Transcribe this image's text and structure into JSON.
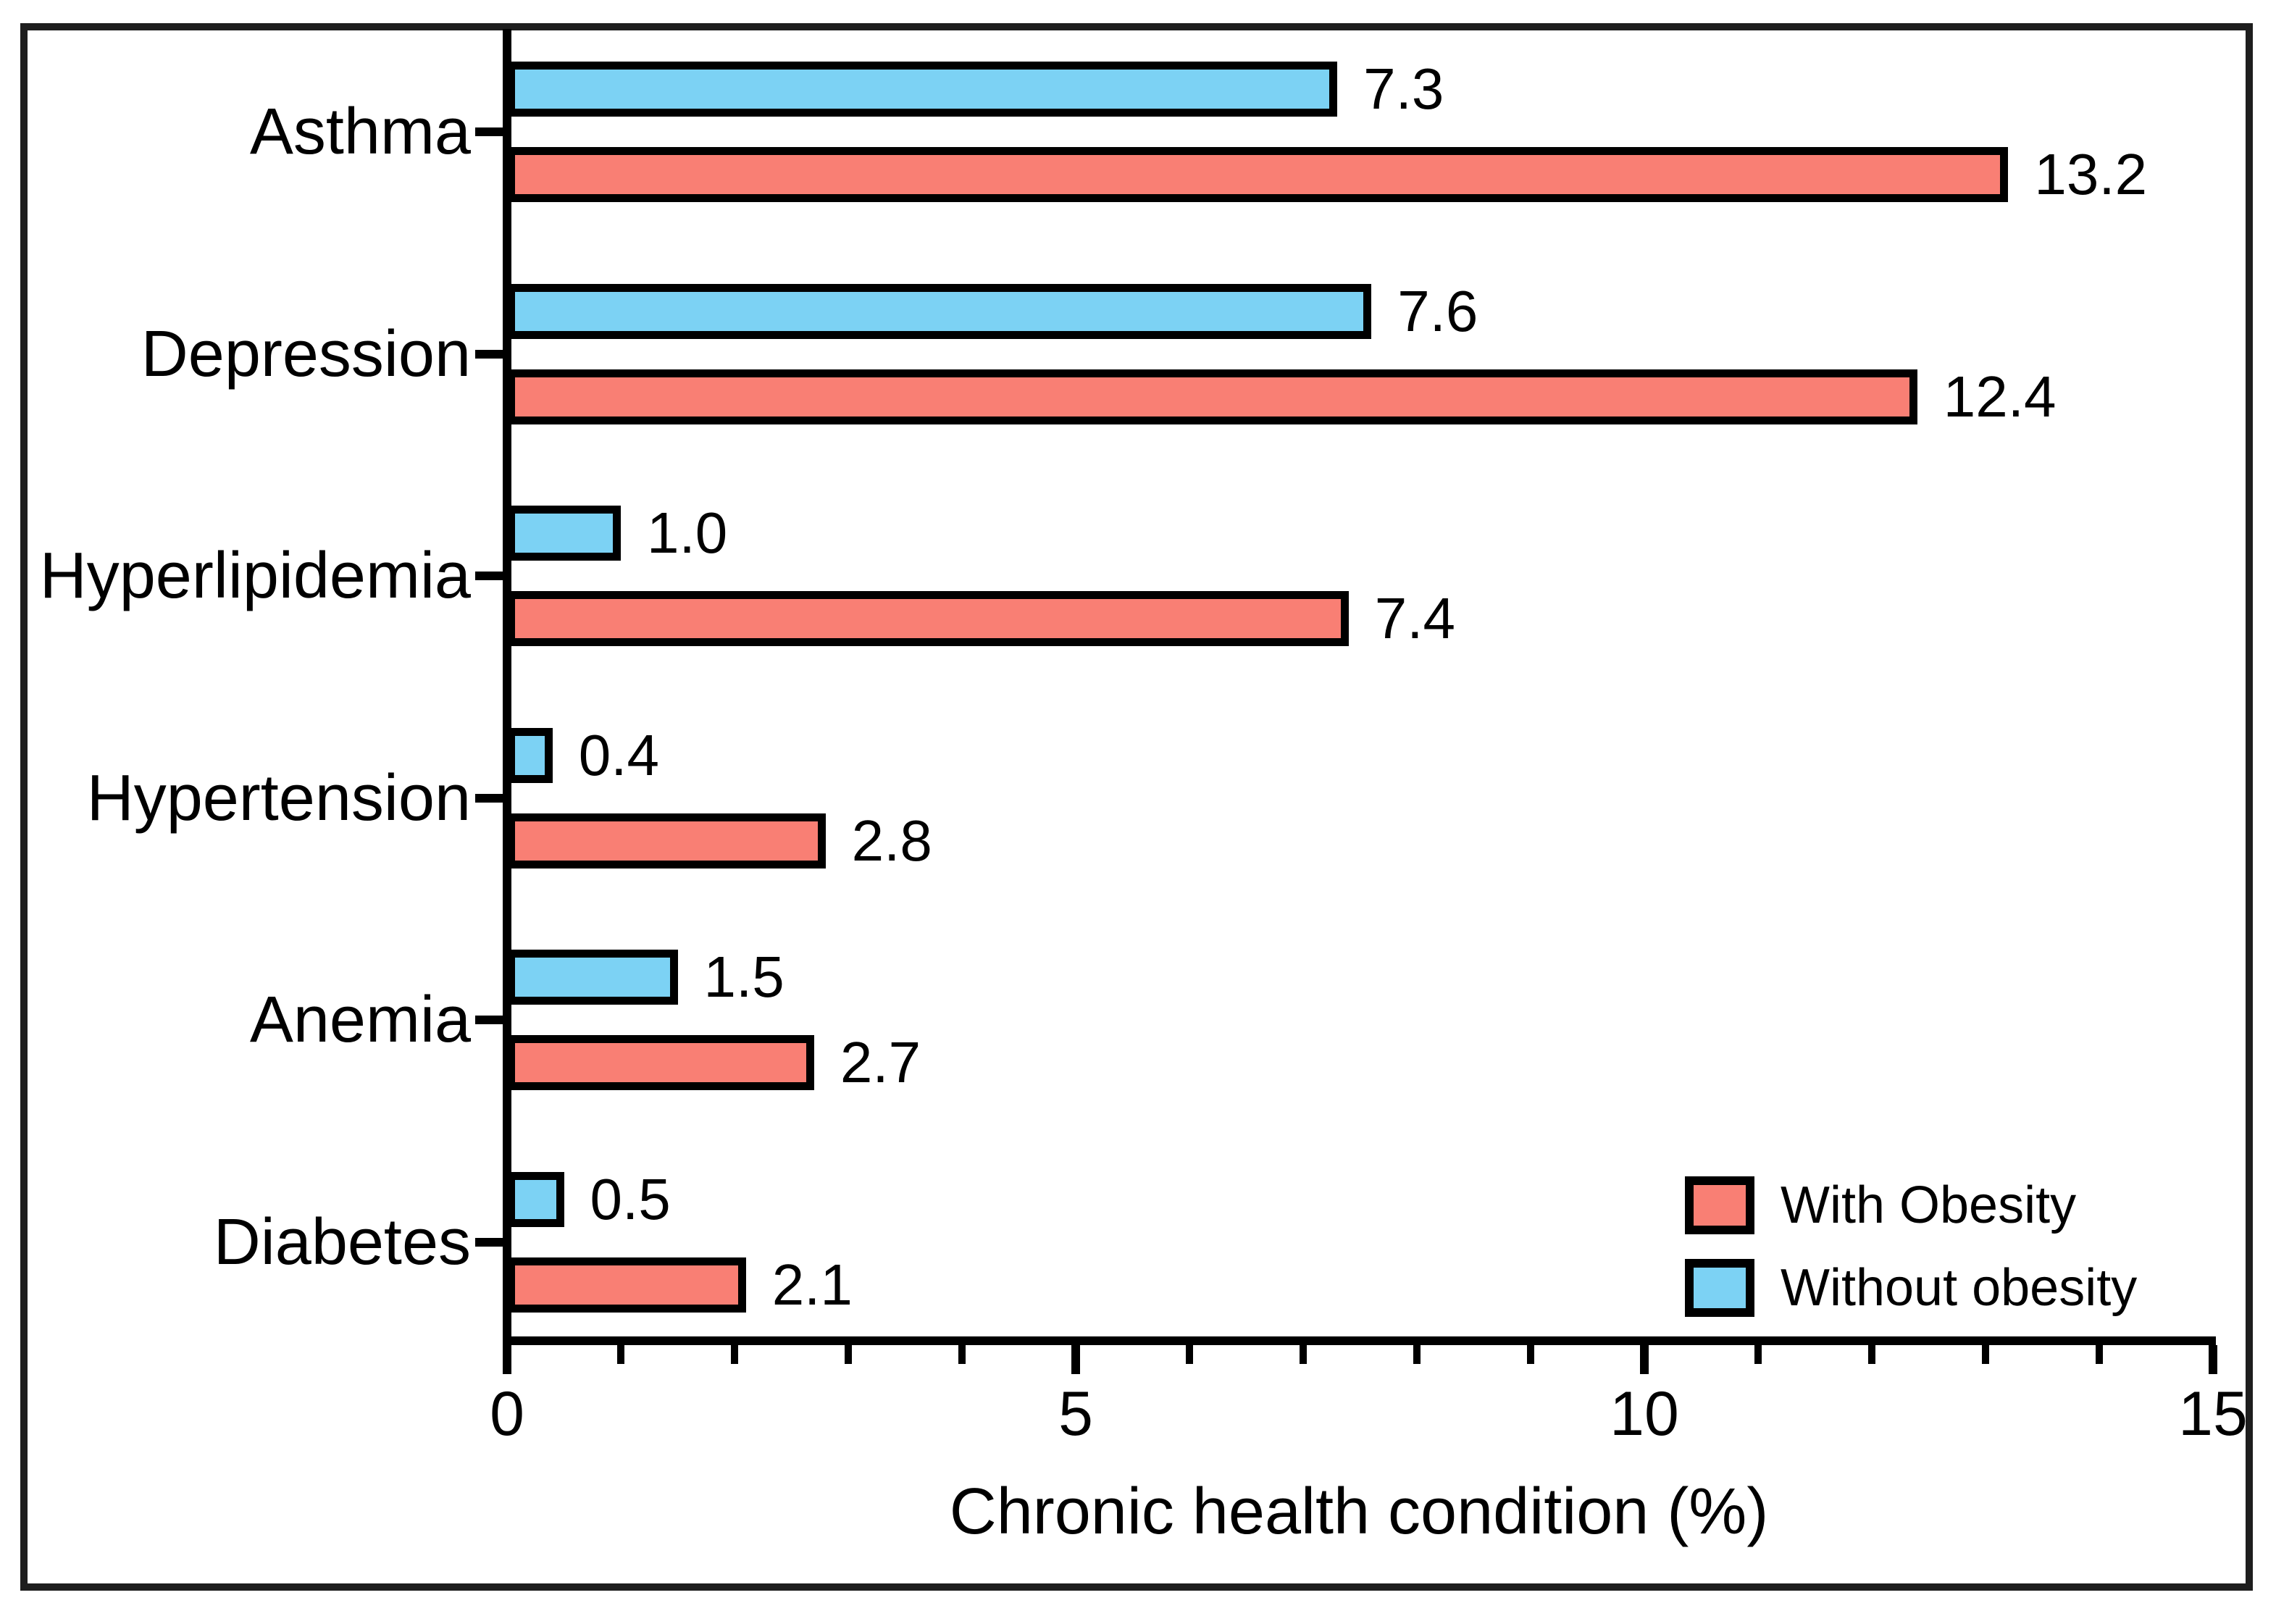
{
  "figure": {
    "background": "#ffffff",
    "frame_color": "#1e1e1e",
    "axis_color": "#000000",
    "text_color": "#000000"
  },
  "chart_data": {
    "type": "bar",
    "orientation": "horizontal",
    "title": "",
    "xlabel": "Chronic health condition (%)",
    "ylabel": "",
    "xlim": [
      0,
      15
    ],
    "x_major_ticks": [
      0,
      5,
      10,
      15
    ],
    "x_minor_tick_step": 1,
    "grid": false,
    "value_label_decimals": 1,
    "categories": [
      "Asthma",
      "Depression",
      "Hyperlipidemia",
      "Hypertension",
      "Anemia",
      "Diabetes"
    ],
    "series": [
      {
        "name": "With Obesity",
        "color": "#F97F74",
        "values": [
          13.2,
          12.4,
          7.4,
          2.8,
          2.7,
          2.1
        ]
      },
      {
        "name": "Without obesity",
        "color": "#7CD2F4",
        "values": [
          7.3,
          7.6,
          1.0,
          0.4,
          1.5,
          0.5
        ]
      }
    ],
    "group_order_top_to_bottom": [
      "Without obesity",
      "With Obesity"
    ],
    "legend_position": "bottom-right"
  }
}
